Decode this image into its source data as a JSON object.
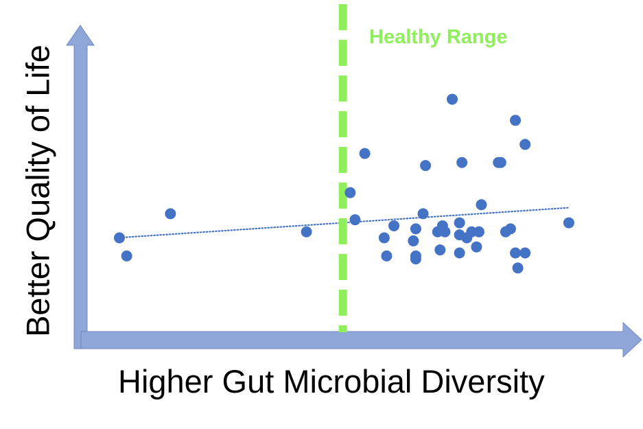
{
  "chart_data": {
    "type": "scatter",
    "title": "",
    "xlabel": "Higher Gut Microbial Diversity",
    "ylabel": "Better Quality of Life",
    "xlim": [
      0,
      100
    ],
    "ylim": [
      0,
      100
    ],
    "grid": false,
    "legend": "none",
    "annotation": "Healthy Range",
    "threshold_x": 52.5,
    "trendline": {
      "style": "dotted",
      "x": [
        6,
        99
      ],
      "y": [
        32,
        42
      ]
    },
    "points": [
      {
        "x": 6.5,
        "y": 32
      },
      {
        "x": 8,
        "y": 26
      },
      {
        "x": 17,
        "y": 40
      },
      {
        "x": 45,
        "y": 34
      },
      {
        "x": 54,
        "y": 47
      },
      {
        "x": 55,
        "y": 38
      },
      {
        "x": 57,
        "y": 60
      },
      {
        "x": 61,
        "y": 32
      },
      {
        "x": 61.5,
        "y": 26
      },
      {
        "x": 63,
        "y": 36
      },
      {
        "x": 67,
        "y": 31
      },
      {
        "x": 67.5,
        "y": 26
      },
      {
        "x": 67.5,
        "y": 25
      },
      {
        "x": 67.5,
        "y": 35
      },
      {
        "x": 69,
        "y": 40
      },
      {
        "x": 69.5,
        "y": 56
      },
      {
        "x": 72,
        "y": 34
      },
      {
        "x": 72.5,
        "y": 28
      },
      {
        "x": 73,
        "y": 36
      },
      {
        "x": 73.5,
        "y": 34
      },
      {
        "x": 75,
        "y": 78
      },
      {
        "x": 76.5,
        "y": 37
      },
      {
        "x": 76.5,
        "y": 33
      },
      {
        "x": 76.5,
        "y": 27
      },
      {
        "x": 77,
        "y": 57
      },
      {
        "x": 78,
        "y": 32
      },
      {
        "x": 79,
        "y": 34
      },
      {
        "x": 80,
        "y": 29
      },
      {
        "x": 80.5,
        "y": 34
      },
      {
        "x": 81,
        "y": 43
      },
      {
        "x": 84.5,
        "y": 57
      },
      {
        "x": 85,
        "y": 57
      },
      {
        "x": 86,
        "y": 34
      },
      {
        "x": 87,
        "y": 35
      },
      {
        "x": 88,
        "y": 71
      },
      {
        "x": 88,
        "y": 27
      },
      {
        "x": 88.5,
        "y": 22
      },
      {
        "x": 90,
        "y": 63
      },
      {
        "x": 90,
        "y": 27
      },
      {
        "x": 99,
        "y": 37
      }
    ]
  },
  "colors": {
    "axis": "#8fa6d9",
    "axis_stroke": "#6f88c4",
    "point": "#4472c4",
    "trendline": "#4472c4",
    "threshold": "#8fef5a",
    "annotation": "#8fef5a"
  }
}
